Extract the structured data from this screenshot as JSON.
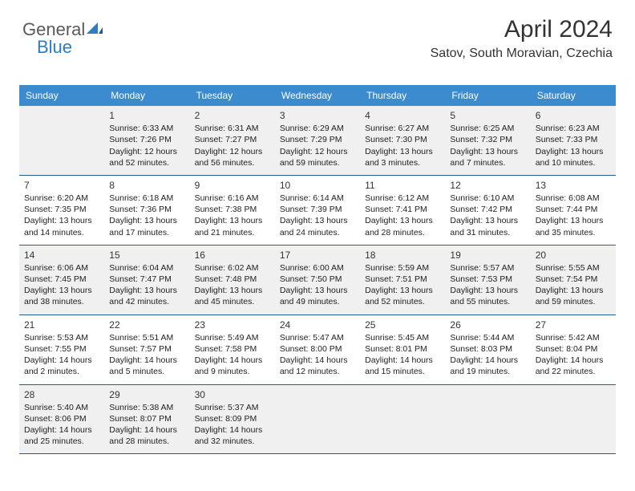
{
  "logo": {
    "text1": "General",
    "text2": "Blue"
  },
  "header": {
    "title": "April 2024",
    "location": "Satov, South Moravian, Czechia"
  },
  "colors": {
    "header_bg": "#3b8bce",
    "row_border": "#236092",
    "alt_bg": "#f0f0f0",
    "logo_gray": "#5a5a5a",
    "logo_blue": "#2d7dc4"
  },
  "days_of_week": [
    "Sunday",
    "Monday",
    "Tuesday",
    "Wednesday",
    "Thursday",
    "Friday",
    "Saturday"
  ],
  "weeks": [
    [
      {
        "num": "",
        "lines": []
      },
      {
        "num": "1",
        "lines": [
          "Sunrise: 6:33 AM",
          "Sunset: 7:26 PM",
          "Daylight: 12 hours and 52 minutes."
        ]
      },
      {
        "num": "2",
        "lines": [
          "Sunrise: 6:31 AM",
          "Sunset: 7:27 PM",
          "Daylight: 12 hours and 56 minutes."
        ]
      },
      {
        "num": "3",
        "lines": [
          "Sunrise: 6:29 AM",
          "Sunset: 7:29 PM",
          "Daylight: 12 hours and 59 minutes."
        ]
      },
      {
        "num": "4",
        "lines": [
          "Sunrise: 6:27 AM",
          "Sunset: 7:30 PM",
          "Daylight: 13 hours and 3 minutes."
        ]
      },
      {
        "num": "5",
        "lines": [
          "Sunrise: 6:25 AM",
          "Sunset: 7:32 PM",
          "Daylight: 13 hours and 7 minutes."
        ]
      },
      {
        "num": "6",
        "lines": [
          "Sunrise: 6:23 AM",
          "Sunset: 7:33 PM",
          "Daylight: 13 hours and 10 minutes."
        ]
      }
    ],
    [
      {
        "num": "7",
        "lines": [
          "Sunrise: 6:20 AM",
          "Sunset: 7:35 PM",
          "Daylight: 13 hours and 14 minutes."
        ]
      },
      {
        "num": "8",
        "lines": [
          "Sunrise: 6:18 AM",
          "Sunset: 7:36 PM",
          "Daylight: 13 hours and 17 minutes."
        ]
      },
      {
        "num": "9",
        "lines": [
          "Sunrise: 6:16 AM",
          "Sunset: 7:38 PM",
          "Daylight: 13 hours and 21 minutes."
        ]
      },
      {
        "num": "10",
        "lines": [
          "Sunrise: 6:14 AM",
          "Sunset: 7:39 PM",
          "Daylight: 13 hours and 24 minutes."
        ]
      },
      {
        "num": "11",
        "lines": [
          "Sunrise: 6:12 AM",
          "Sunset: 7:41 PM",
          "Daylight: 13 hours and 28 minutes."
        ]
      },
      {
        "num": "12",
        "lines": [
          "Sunrise: 6:10 AM",
          "Sunset: 7:42 PM",
          "Daylight: 13 hours and 31 minutes."
        ]
      },
      {
        "num": "13",
        "lines": [
          "Sunrise: 6:08 AM",
          "Sunset: 7:44 PM",
          "Daylight: 13 hours and 35 minutes."
        ]
      }
    ],
    [
      {
        "num": "14",
        "lines": [
          "Sunrise: 6:06 AM",
          "Sunset: 7:45 PM",
          "Daylight: 13 hours and 38 minutes."
        ]
      },
      {
        "num": "15",
        "lines": [
          "Sunrise: 6:04 AM",
          "Sunset: 7:47 PM",
          "Daylight: 13 hours and 42 minutes."
        ]
      },
      {
        "num": "16",
        "lines": [
          "Sunrise: 6:02 AM",
          "Sunset: 7:48 PM",
          "Daylight: 13 hours and 45 minutes."
        ]
      },
      {
        "num": "17",
        "lines": [
          "Sunrise: 6:00 AM",
          "Sunset: 7:50 PM",
          "Daylight: 13 hours and 49 minutes."
        ]
      },
      {
        "num": "18",
        "lines": [
          "Sunrise: 5:59 AM",
          "Sunset: 7:51 PM",
          "Daylight: 13 hours and 52 minutes."
        ]
      },
      {
        "num": "19",
        "lines": [
          "Sunrise: 5:57 AM",
          "Sunset: 7:53 PM",
          "Daylight: 13 hours and 55 minutes."
        ]
      },
      {
        "num": "20",
        "lines": [
          "Sunrise: 5:55 AM",
          "Sunset: 7:54 PM",
          "Daylight: 13 hours and 59 minutes."
        ]
      }
    ],
    [
      {
        "num": "21",
        "lines": [
          "Sunrise: 5:53 AM",
          "Sunset: 7:55 PM",
          "Daylight: 14 hours and 2 minutes."
        ]
      },
      {
        "num": "22",
        "lines": [
          "Sunrise: 5:51 AM",
          "Sunset: 7:57 PM",
          "Daylight: 14 hours and 5 minutes."
        ]
      },
      {
        "num": "23",
        "lines": [
          "Sunrise: 5:49 AM",
          "Sunset: 7:58 PM",
          "Daylight: 14 hours and 9 minutes."
        ]
      },
      {
        "num": "24",
        "lines": [
          "Sunrise: 5:47 AM",
          "Sunset: 8:00 PM",
          "Daylight: 14 hours and 12 minutes."
        ]
      },
      {
        "num": "25",
        "lines": [
          "Sunrise: 5:45 AM",
          "Sunset: 8:01 PM",
          "Daylight: 14 hours and 15 minutes."
        ]
      },
      {
        "num": "26",
        "lines": [
          "Sunrise: 5:44 AM",
          "Sunset: 8:03 PM",
          "Daylight: 14 hours and 19 minutes."
        ]
      },
      {
        "num": "27",
        "lines": [
          "Sunrise: 5:42 AM",
          "Sunset: 8:04 PM",
          "Daylight: 14 hours and 22 minutes."
        ]
      }
    ],
    [
      {
        "num": "28",
        "lines": [
          "Sunrise: 5:40 AM",
          "Sunset: 8:06 PM",
          "Daylight: 14 hours and 25 minutes."
        ]
      },
      {
        "num": "29",
        "lines": [
          "Sunrise: 5:38 AM",
          "Sunset: 8:07 PM",
          "Daylight: 14 hours and 28 minutes."
        ]
      },
      {
        "num": "30",
        "lines": [
          "Sunrise: 5:37 AM",
          "Sunset: 8:09 PM",
          "Daylight: 14 hours and 32 minutes."
        ]
      },
      {
        "num": "",
        "lines": []
      },
      {
        "num": "",
        "lines": []
      },
      {
        "num": "",
        "lines": []
      },
      {
        "num": "",
        "lines": []
      }
    ]
  ]
}
